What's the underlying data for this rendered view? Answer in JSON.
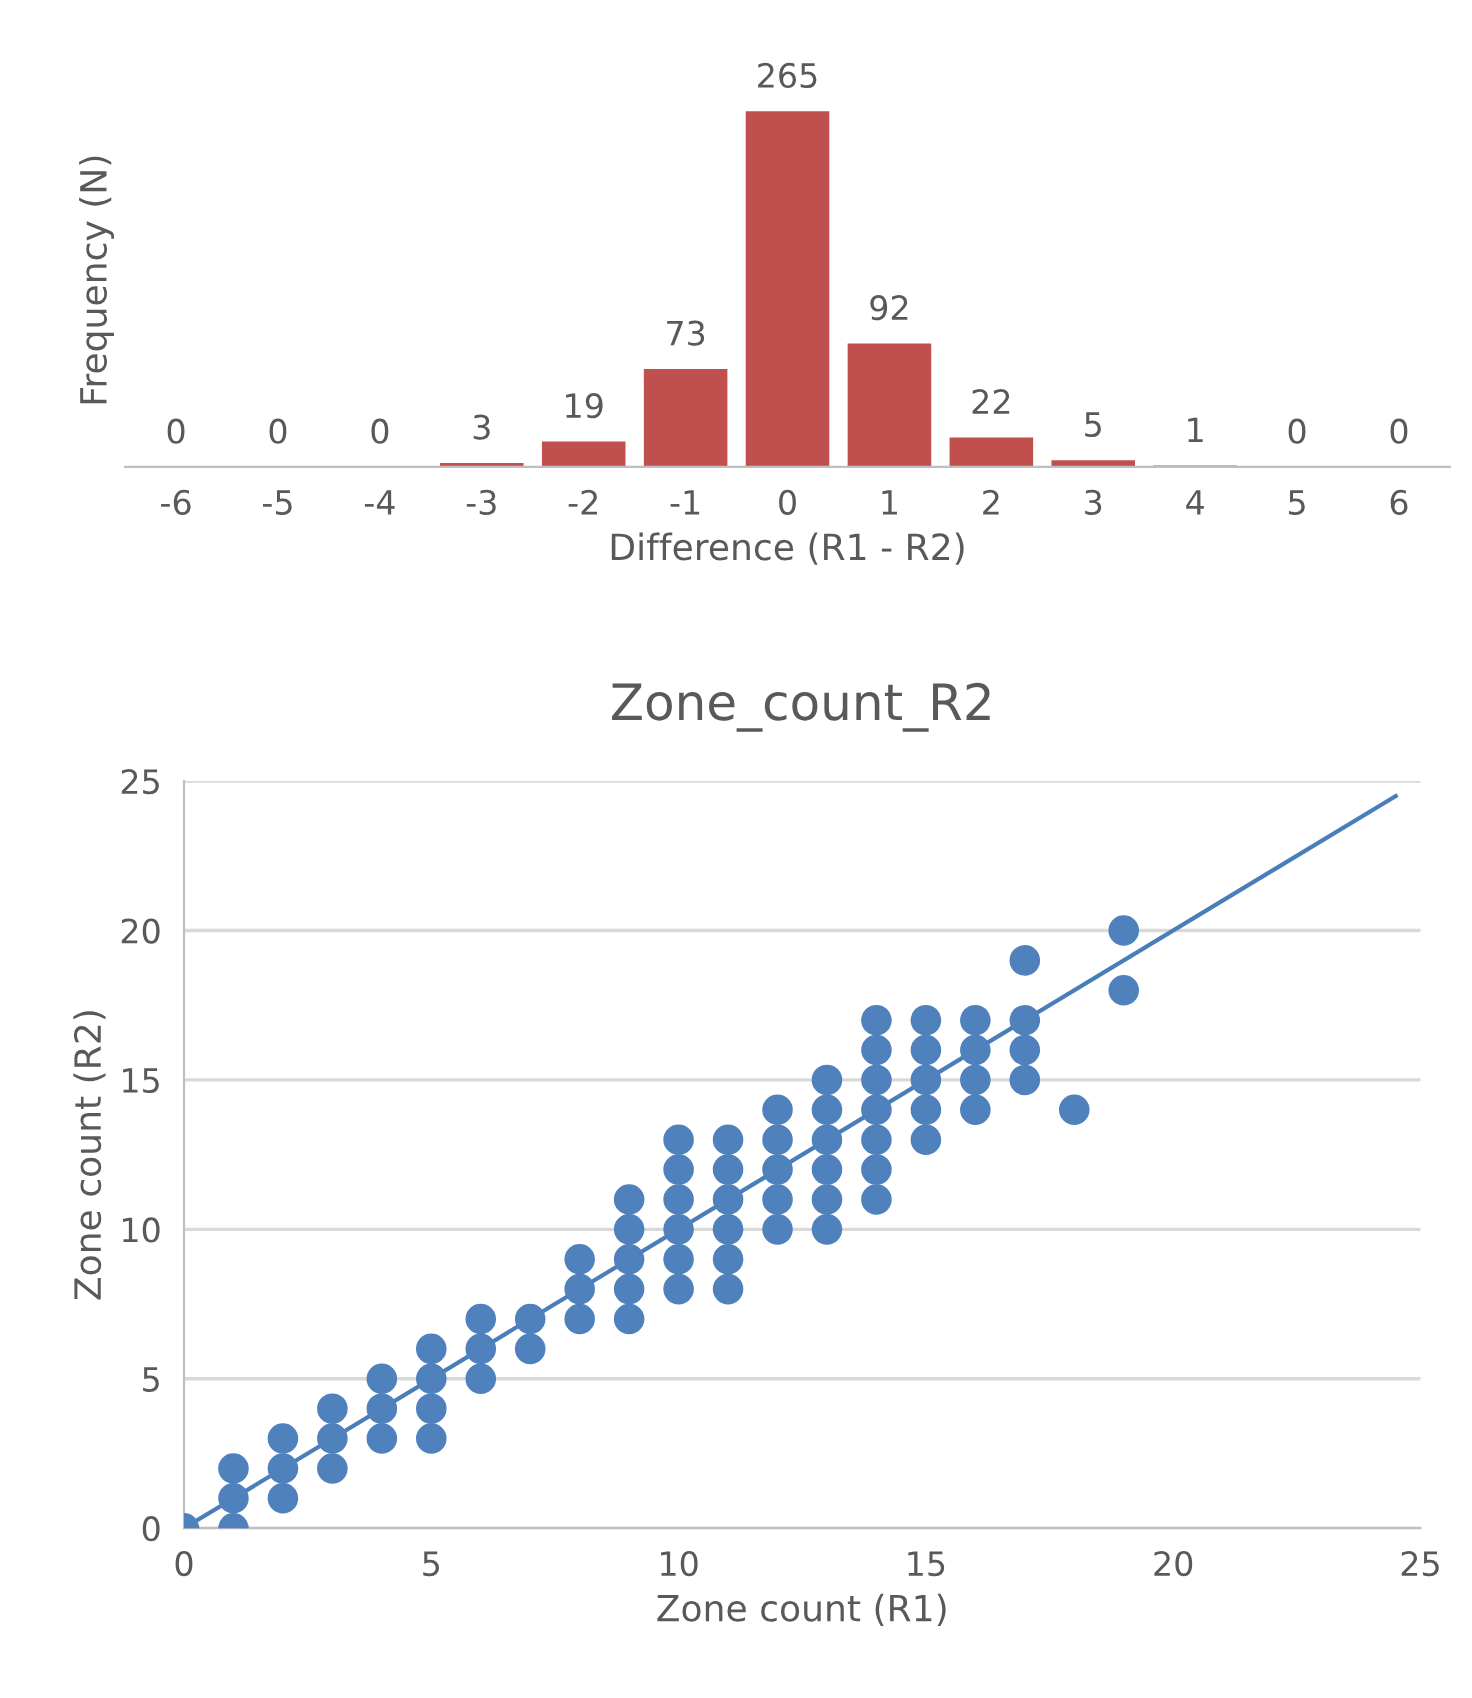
{
  "chart_data": [
    {
      "type": "bar",
      "categories": [
        "-6",
        "-5",
        "-4",
        "-3",
        "-2",
        "-1",
        "0",
        "1",
        "2",
        "3",
        "4",
        "5",
        "6"
      ],
      "values": [
        0,
        0,
        0,
        3,
        19,
        73,
        265,
        92,
        22,
        5,
        1,
        0,
        0
      ],
      "color": "#c0504d",
      "data_labels": true,
      "xlabel": "Difference (R1 - R2)",
      "ylabel": "Frequency (N)",
      "tick_labels": "x",
      "grid": false,
      "legend": false
    },
    {
      "type": "scatter",
      "title": "Zone_count_R2",
      "xlabel": "Zone count (R1)",
      "ylabel": "Zone count (R2)",
      "xlim": [
        0,
        25
      ],
      "xticks": [
        0,
        5,
        10,
        15,
        20,
        25
      ],
      "ylim": [
        0,
        25
      ],
      "yticks": [
        0,
        5,
        10,
        15,
        20,
        25
      ],
      "grid": "y",
      "legend": false,
      "marker": "circle",
      "series": [
        {
          "type": "scatter",
          "color": "#4f81bd",
          "x": [
            0,
            1,
            1,
            1,
            2,
            2,
            2,
            3,
            3,
            3,
            4,
            4,
            4,
            5,
            5,
            5,
            5,
            6,
            6,
            6,
            7,
            7,
            8,
            8,
            8,
            9,
            9,
            9,
            9,
            9,
            10,
            10,
            10,
            10,
            10,
            10,
            11,
            11,
            11,
            11,
            11,
            11,
            12,
            12,
            12,
            12,
            12,
            13,
            13,
            13,
            13,
            13,
            13,
            14,
            14,
            14,
            14,
            14,
            14,
            14,
            15,
            15,
            15,
            15,
            15,
            16,
            16,
            16,
            16,
            17,
            17,
            17,
            17,
            18,
            19,
            19
          ],
          "values": [
            0,
            0,
            1,
            2,
            1,
            2,
            3,
            2,
            3,
            4,
            3,
            4,
            5,
            3,
            4,
            5,
            6,
            5,
            6,
            7,
            6,
            7,
            7,
            8,
            9,
            7,
            8,
            9,
            10,
            11,
            8,
            9,
            10,
            11,
            12,
            13,
            8,
            9,
            10,
            11,
            12,
            13,
            10,
            11,
            12,
            13,
            14,
            10,
            11,
            12,
            13,
            14,
            15,
            11,
            12,
            13,
            14,
            15,
            16,
            17,
            13,
            14,
            15,
            16,
            17,
            14,
            15,
            16,
            17,
            15,
            16,
            17,
            19,
            14,
            18,
            20
          ]
        },
        {
          "type": "line",
          "color": "#4a7ebb",
          "x": [
            0,
            24.5
          ],
          "values": [
            0,
            24.5
          ],
          "line_style": "solid",
          "marker": "none"
        }
      ]
    }
  ]
}
